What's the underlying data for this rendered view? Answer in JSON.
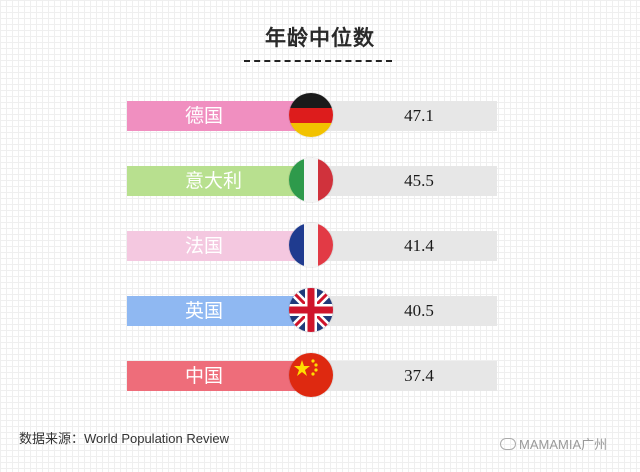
{
  "chart_data": {
    "type": "bar",
    "title": "年龄中位数",
    "categories": [
      "德国",
      "意大利",
      "法国",
      "英国",
      "中国"
    ],
    "values": [
      47.1,
      45.5,
      41.4,
      40.5,
      37.4
    ],
    "value_labels": [
      "47.1",
      "45.5",
      "41.4",
      "40.5",
      "37.4"
    ],
    "category_colors": [
      "#f08fc0",
      "#b8e08f",
      "#f4c8e0",
      "#8fb8f2",
      "#ee6d7a"
    ],
    "flags": [
      "germany-flag-icon",
      "italy-flag-icon",
      "france-flag-icon",
      "uk-flag-icon",
      "china-flag-icon"
    ]
  },
  "footer": {
    "source": "数据来源：World Population Review",
    "watermark": "MAMAMIA广州"
  }
}
